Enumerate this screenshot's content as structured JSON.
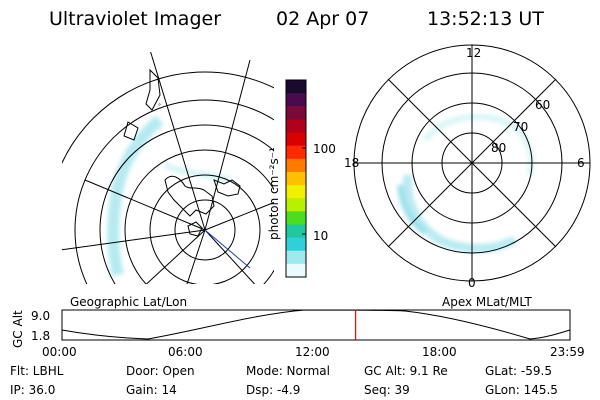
{
  "header": {
    "instrument": "Ultraviolet Imager",
    "date": "02 Apr 07",
    "time": "13:52:13 UT"
  },
  "colorbar": {
    "unit_label": "photon cm⁻²s⁻¹",
    "ticks": [
      "100",
      "10"
    ],
    "colors": [
      "#1a0a2e",
      "#4b0a4b",
      "#7a0a3a",
      "#b0001a",
      "#d80000",
      "#ff2a00",
      "#ff7a00",
      "#ffc000",
      "#f0f000",
      "#b8f000",
      "#4cdc20",
      "#20c8a0",
      "#30d0d8",
      "#a0e8ee",
      "#e8fbfd"
    ]
  },
  "polar_plot": {
    "hour_labels": {
      "top": "12",
      "left": "18",
      "right": "6",
      "bottom": "0"
    },
    "lat_labels": [
      "60",
      "70",
      "80"
    ],
    "frame_label": "Apex MLat/MLT"
  },
  "geo_plot": {
    "frame_label": "Geographic Lat/Lon"
  },
  "altitude_plot": {
    "axis_title": "GC Alt",
    "y_ticks": [
      "9.0",
      "1.8"
    ],
    "x_ticks": [
      "00:00",
      "06:00",
      "12:00",
      "18:00",
      "23:59"
    ],
    "current_time_fraction": 0.578,
    "marker_color": "#ff0000"
  },
  "metadata": {
    "flt": "Flt: LBHL",
    "ip": "IP: 36.0",
    "door": "Door: Open",
    "gain": "Gain: 14",
    "mode": "Mode: Normal",
    "dsp": "Dsp:    -4.9",
    "gc_alt": "GC Alt: 9.1 Re",
    "seq": "Seq: 39",
    "glat": "GLat: -59.5",
    "glon": "GLon: 145.5"
  }
}
